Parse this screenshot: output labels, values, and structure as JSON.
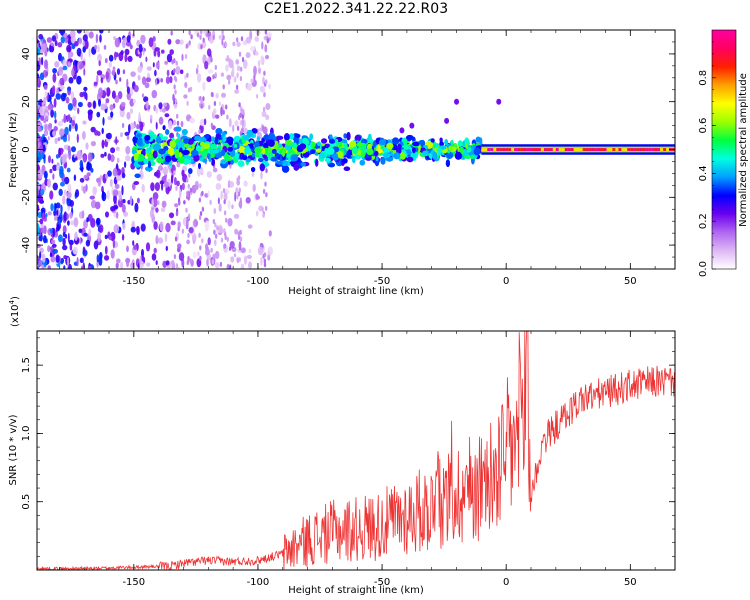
{
  "title": "C2E1.2022.341.22.22.R03",
  "chart_data": [
    {
      "type": "heatmap",
      "xlabel": "Height of straight line (km)",
      "ylabel": "Frequency (Hz)",
      "xlim": [
        -189,
        68
      ],
      "ylim": [
        -50,
        50
      ],
      "xticks": [
        -150,
        -100,
        -50,
        0,
        50
      ],
      "yticks": [
        -40,
        -20,
        0,
        20,
        40
      ],
      "colorbar": {
        "label": "Normalized spectral amplitude",
        "range": [
          0.0,
          1.0
        ],
        "ticks": [
          0.0,
          0.2,
          0.4,
          0.6,
          0.8
        ],
        "tick_labels": [
          "0.0",
          "0.2",
          "0.4",
          "0.6",
          "0.8"
        ],
        "colors": [
          "#ffffff",
          "#ddb8f5",
          "#b066f0",
          "#6a00f0",
          "#0000ff",
          "#00a0ff",
          "#00ffe0",
          "#00ff40",
          "#9cff00",
          "#ffff00",
          "#ffa000",
          "#ff2000",
          "#ff0060",
          "#ff00a0"
        ]
      },
      "description_of_signal": {
        "carrier_center_hz": 0,
        "bright_line_x_range": [
          -10,
          68
        ],
        "noisy_band_x_range": [
          -150,
          -10
        ],
        "diffuse_noise_x_range": [
          -189,
          -105
        ]
      }
    },
    {
      "type": "line",
      "xlabel": "Height of straight line (km)",
      "ylabel": "SNR (10 * v/v)",
      "y_scale_label": "(x10",
      "y_scale_exp": "4",
      "xlim": [
        -189,
        68
      ],
      "ylim": [
        0,
        1.75
      ],
      "xticks": [
        -150,
        -100,
        -50,
        0,
        50
      ],
      "yticks": [
        0.5,
        1.0,
        1.5
      ],
      "ytick_labels": [
        "0.5",
        "1.0",
        "1.5"
      ],
      "series": [
        {
          "color": "#ee3333",
          "x": [
            -189,
            -170,
            -150,
            -135,
            -130,
            -120,
            -110,
            -100,
            -90,
            -80,
            -70,
            -60,
            -50,
            -40,
            -30,
            -20,
            -15,
            -10,
            -5,
            0,
            5,
            8,
            10,
            15,
            20,
            30,
            40,
            50,
            60,
            68
          ],
          "y": [
            0.01,
            0.01,
            0.02,
            0.03,
            0.05,
            0.07,
            0.06,
            0.07,
            0.12,
            0.22,
            0.28,
            0.3,
            0.33,
            0.4,
            0.46,
            0.55,
            0.6,
            0.62,
            0.7,
            0.85,
            0.95,
            1.3,
            0.55,
            0.95,
            1.05,
            1.25,
            1.3,
            1.35,
            1.38,
            1.38
          ]
        }
      ]
    }
  ]
}
